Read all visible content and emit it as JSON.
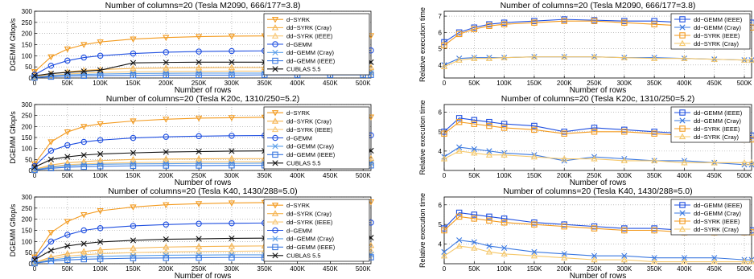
{
  "figure": {
    "x_ticks": [
      "0",
      "50K",
      "100K",
      "150K",
      "200K",
      "250K",
      "300K",
      "350K",
      "400K",
      "450K",
      "500K"
    ],
    "marker_colors": {
      "orange": "#f39a1e",
      "blue": "#1f4fe0",
      "black": "#111111",
      "lightblue": "#5a9ee8",
      "peach": "#f2b060",
      "yellow": "#f5c86b"
    }
  },
  "chart_data": [
    {
      "type": "line",
      "title": "Number of columns=20 (Tesla M2090, 666/177=3.8)",
      "xlabel": "Number of rows",
      "ylabel": "DGEMM Gflop/s",
      "xlim": [
        0,
        512000
      ],
      "ylim": [
        0,
        300
      ],
      "y_ticks": [
        "0",
        "50",
        "100",
        "150",
        "200",
        "250",
        "300"
      ],
      "grid": true,
      "legend_position": "top-right",
      "x": [
        0,
        25,
        50,
        75,
        100,
        150,
        200,
        250,
        300,
        350,
        400,
        450,
        500,
        512
      ],
      "series": [
        {
          "name": "d−SYRK",
          "color": "#f39a1e",
          "marker": "tri-down",
          "values": [
            28,
            95,
            130,
            150,
            162,
            175,
            182,
            186,
            188,
            189,
            189,
            190,
            190,
            190
          ]
        },
        {
          "name": "dd−SYRK (Cray)",
          "color": "#f5b451",
          "marker": "tri-up",
          "values": [
            5,
            18,
            28,
            34,
            38,
            43,
            45,
            46,
            47,
            47,
            48,
            48,
            48,
            48
          ]
        },
        {
          "name": "dd−SYRK (IEEE)",
          "color": "#f8c877",
          "marker": "tri-up",
          "values": [
            3,
            12,
            18,
            22,
            25,
            28,
            29,
            30,
            31,
            31,
            31,
            31,
            31,
            31
          ]
        },
        {
          "name": "d−GEMM",
          "color": "#1f4fe0",
          "marker": "circle",
          "values": [
            15,
            55,
            78,
            92,
            100,
            110,
            116,
            119,
            121,
            122,
            123,
            124,
            124,
            124
          ]
        },
        {
          "name": "dd−GEMM (Cray)",
          "color": "#5a9ee8",
          "marker": "x",
          "values": [
            3,
            10,
            14,
            16,
            18,
            20,
            21,
            22,
            22,
            22,
            23,
            23,
            23,
            23
          ]
        },
        {
          "name": "dd−GEMM (IEEE)",
          "color": "#3a78e0",
          "marker": "square",
          "values": [
            2,
            6,
            9,
            10,
            11,
            12,
            13,
            13,
            13,
            14,
            14,
            14,
            14,
            14
          ]
        },
        {
          "name": "CUBLAS 5.5",
          "color": "#111111",
          "marker": "x",
          "values": [
            10,
            20,
            25,
            30,
            35,
            68,
            70,
            71,
            71,
            71,
            71,
            71,
            71,
            71
          ]
        }
      ]
    },
    {
      "type": "line",
      "title": "Number of columns=20 (Tesla M2090, 666/177=3.8)",
      "xlabel": "Number of rows",
      "ylabel": "Relative execution time",
      "xlim": [
        0,
        512000
      ],
      "ylim": [
        3.2,
        7.3
      ],
      "y_ticks": [
        "4",
        "5",
        "6",
        "7"
      ],
      "grid": true,
      "legend_position": "top-right",
      "x": [
        0,
        25,
        50,
        75,
        100,
        150,
        200,
        250,
        300,
        350,
        400,
        450,
        500,
        512
      ],
      "series": [
        {
          "name": "dd−GEMM (IEEE)",
          "color": "#1f4fe0",
          "marker": "square",
          "values": [
            5.4,
            6.0,
            6.3,
            6.5,
            6.6,
            6.7,
            6.8,
            6.75,
            6.7,
            6.7,
            6.6,
            6.6,
            6.6,
            6.6
          ]
        },
        {
          "name": "dd−GEMM (Cray)",
          "color": "#3a78e0",
          "marker": "x",
          "values": [
            4.0,
            4.4,
            4.45,
            4.45,
            4.45,
            4.5,
            4.5,
            4.5,
            4.45,
            4.45,
            4.4,
            4.35,
            4.3,
            4.3
          ]
        },
        {
          "name": "dd−SYRK (IEEE)",
          "color": "#f39a1e",
          "marker": "square",
          "values": [
            5.2,
            5.9,
            6.2,
            6.4,
            6.5,
            6.6,
            6.7,
            6.7,
            6.6,
            6.5,
            6.4,
            6.4,
            6.3,
            6.3
          ]
        },
        {
          "name": "dd−SYRK (Cray)",
          "color": "#f5c86b",
          "marker": "tri-up",
          "values": [
            3.9,
            4.3,
            4.4,
            4.4,
            4.45,
            4.5,
            4.5,
            4.5,
            4.45,
            4.4,
            4.4,
            4.35,
            4.3,
            4.3
          ]
        }
      ]
    },
    {
      "type": "line",
      "title": "Number of columns=20 (Tesla K20c, 1310/250=5.2)",
      "xlabel": "Number of rows",
      "ylabel": "DGEMM Gflop/s",
      "xlim": [
        0,
        512000
      ],
      "ylim": [
        0,
        300
      ],
      "y_ticks": [
        "0",
        "50",
        "100",
        "150",
        "200",
        "250",
        "300"
      ],
      "grid": true,
      "legend_position": "top-right",
      "x": [
        0,
        25,
        50,
        75,
        100,
        150,
        200,
        250,
        300,
        350,
        400,
        450,
        500,
        512
      ],
      "series": [
        {
          "name": "d−SYRK",
          "color": "#f39a1e",
          "marker": "tri-down",
          "values": [
            30,
            130,
            175,
            200,
            212,
            225,
            233,
            238,
            240,
            242,
            242,
            243,
            243,
            243
          ]
        },
        {
          "name": "dd−SYRK (Cray)",
          "color": "#f5b451",
          "marker": "tri-up",
          "values": [
            5,
            25,
            35,
            40,
            45,
            50,
            52,
            53,
            54,
            54,
            55,
            55,
            55,
            55
          ]
        },
        {
          "name": "dd−SYRK (IEEE)",
          "color": "#f8c877",
          "marker": "tri-up",
          "values": [
            4,
            18,
            26,
            30,
            33,
            36,
            38,
            39,
            40,
            40,
            40,
            40,
            40,
            40
          ]
        },
        {
          "name": "d−GEMM",
          "color": "#1f4fe0",
          "marker": "circle",
          "values": [
            20,
            90,
            115,
            130,
            138,
            148,
            153,
            156,
            158,
            159,
            160,
            160,
            160,
            160
          ]
        },
        {
          "name": "dd−GEMM (Cray)",
          "color": "#5a9ee8",
          "marker": "x",
          "values": [
            3,
            15,
            22,
            26,
            28,
            30,
            31,
            32,
            32,
            33,
            33,
            33,
            33,
            33
          ]
        },
        {
          "name": "dd−GEMM (IEEE)",
          "color": "#3a78e0",
          "marker": "square",
          "values": [
            2,
            10,
            15,
            17,
            19,
            21,
            22,
            22,
            23,
            23,
            23,
            23,
            23,
            23
          ]
        },
        {
          "name": "CUBLAS 5.5",
          "color": "#111111",
          "marker": "x",
          "values": [
            15,
            50,
            62,
            70,
            75,
            80,
            84,
            86,
            88,
            89,
            89,
            90,
            90,
            90
          ]
        }
      ]
    },
    {
      "type": "line",
      "title": "Number of columns=20 (Tesla K20c, 1310/250=5.2)",
      "xlabel": "Number of rows",
      "ylabel": "Relative execution time",
      "xlim": [
        0,
        512000
      ],
      "ylim": [
        3.0,
        6.4
      ],
      "y_ticks": [
        "4",
        "5",
        "6"
      ],
      "grid": true,
      "legend_position": "top-right",
      "x": [
        0,
        25,
        50,
        75,
        100,
        150,
        200,
        250,
        300,
        350,
        400,
        450,
        500,
        512
      ],
      "series": [
        {
          "name": "dd−GEMM (IEEE)",
          "color": "#1f4fe0",
          "marker": "square",
          "values": [
            5.0,
            5.7,
            5.6,
            5.5,
            5.4,
            5.3,
            5.0,
            5.2,
            5.1,
            5.0,
            4.9,
            4.8,
            4.8,
            4.8
          ]
        },
        {
          "name": "dd−GEMM (Cray)",
          "color": "#3a78e0",
          "marker": "x",
          "values": [
            3.7,
            4.2,
            4.1,
            4.0,
            3.9,
            3.8,
            3.5,
            3.7,
            3.6,
            3.5,
            3.5,
            3.4,
            3.3,
            3.3
          ]
        },
        {
          "name": "dd−SYRK (IEEE)",
          "color": "#f39a1e",
          "marker": "square",
          "values": [
            4.9,
            5.5,
            5.4,
            5.3,
            5.2,
            5.1,
            4.9,
            5.0,
            5.0,
            4.9,
            4.8,
            4.7,
            4.6,
            4.6
          ]
        },
        {
          "name": "dd−SYRK (Cray)",
          "color": "#f5c86b",
          "marker": "tri-up",
          "values": [
            3.6,
            4.0,
            3.9,
            3.8,
            3.8,
            3.7,
            3.6,
            3.6,
            3.5,
            3.5,
            3.4,
            3.4,
            3.4,
            3.4
          ]
        }
      ]
    },
    {
      "type": "line",
      "title": "Number of columns=20 (Tesla K40, 1430/288=5.0)",
      "xlabel": "Number of rows",
      "ylabel": "DGEMM Gflop/s",
      "xlim": [
        0,
        512000
      ],
      "ylim": [
        0,
        300
      ],
      "y_ticks": [
        "0",
        "50",
        "100",
        "150",
        "200",
        "250",
        "300"
      ],
      "grid": true,
      "legend_position": "top-right",
      "x": [
        0,
        25,
        50,
        75,
        100,
        150,
        200,
        250,
        300,
        350,
        400,
        450,
        500,
        512
      ],
      "series": [
        {
          "name": "d−SYRK",
          "color": "#f39a1e",
          "marker": "tri-down",
          "values": [
            30,
            140,
            190,
            220,
            238,
            255,
            265,
            270,
            273,
            275,
            277,
            278,
            278,
            278
          ]
        },
        {
          "name": "dd−SYRK (Cray)",
          "color": "#f5b451",
          "marker": "tri-up",
          "values": [
            5,
            30,
            45,
            55,
            62,
            70,
            75,
            77,
            79,
            80,
            81,
            81,
            82,
            82
          ]
        },
        {
          "name": "dd−SYRK (IEEE)",
          "color": "#f8c877",
          "marker": "tri-up",
          "values": [
            4,
            22,
            34,
            40,
            45,
            50,
            53,
            55,
            56,
            57,
            57,
            58,
            58,
            58
          ]
        },
        {
          "name": "d−GEMM",
          "color": "#1f4fe0",
          "marker": "circle",
          "values": [
            20,
            100,
            130,
            150,
            160,
            170,
            176,
            180,
            182,
            183,
            184,
            185,
            185,
            185
          ]
        },
        {
          "name": "dd−GEMM (Cray)",
          "color": "#5a9ee8",
          "marker": "x",
          "values": [
            3,
            17,
            25,
            30,
            33,
            36,
            38,
            39,
            40,
            40,
            41,
            41,
            41,
            41
          ]
        },
        {
          "name": "dd−GEMM (IEEE)",
          "color": "#3a78e0",
          "marker": "square",
          "values": [
            2,
            12,
            17,
            20,
            22,
            25,
            26,
            27,
            28,
            28,
            28,
            29,
            29,
            29
          ]
        },
        {
          "name": "CUBLAS 5.5",
          "color": "#111111",
          "marker": "x",
          "values": [
            18,
            60,
            80,
            90,
            98,
            105,
            110,
            112,
            114,
            115,
            116,
            116,
            117,
            117
          ]
        }
      ]
    },
    {
      "type": "line",
      "title": "Number of columns=20 (Tesla K40, 1430/288=5.0)",
      "xlabel": "Number of rows",
      "ylabel": "Relative execution time",
      "xlim": [
        0,
        512000
      ],
      "ylim": [
        3.0,
        6.4
      ],
      "y_ticks": [
        "4",
        "5",
        "6"
      ],
      "grid": true,
      "legend_position": "top-right",
      "x": [
        0,
        25,
        50,
        75,
        100,
        150,
        200,
        250,
        300,
        350,
        400,
        450,
        500,
        512
      ],
      "series": [
        {
          "name": "dd−GEMM (IEEE)",
          "color": "#1f4fe0",
          "marker": "square",
          "values": [
            4.8,
            5.6,
            5.5,
            5.4,
            5.3,
            5.1,
            5.0,
            4.9,
            4.8,
            4.8,
            4.7,
            4.7,
            4.7,
            4.7
          ]
        },
        {
          "name": "dd−GEMM (Cray)",
          "color": "#3a78e0",
          "marker": "x",
          "values": [
            3.6,
            4.2,
            4.1,
            3.9,
            3.8,
            3.6,
            3.5,
            3.4,
            3.4,
            3.3,
            3.3,
            3.3,
            3.2,
            3.2
          ]
        },
        {
          "name": "dd−SYRK (IEEE)",
          "color": "#f39a1e",
          "marker": "square",
          "values": [
            4.7,
            5.4,
            5.3,
            5.2,
            5.1,
            5.0,
            4.9,
            4.8,
            4.7,
            4.7,
            4.6,
            4.6,
            4.6,
            4.6
          ]
        },
        {
          "name": "dd−SYRK (Cray)",
          "color": "#f5c86b",
          "marker": "tri-up",
          "values": [
            3.4,
            3.9,
            3.8,
            3.6,
            3.5,
            3.4,
            3.3,
            3.2,
            3.2,
            3.1,
            3.1,
            3.1,
            3.1,
            3.1
          ]
        }
      ]
    }
  ]
}
